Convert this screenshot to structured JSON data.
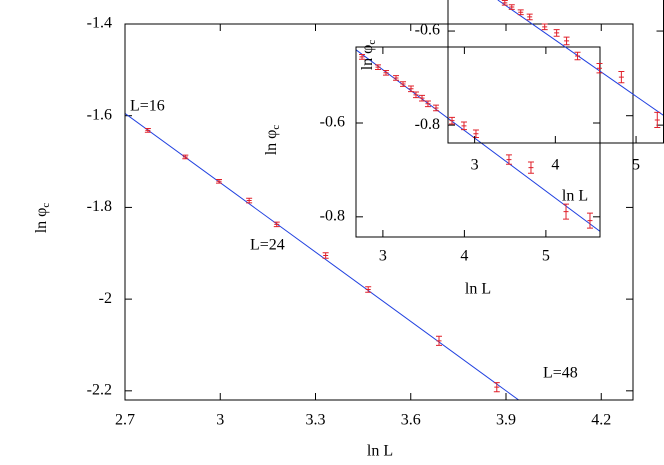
{
  "chart_data": [
    {
      "type": "scatter",
      "xlabel": "ln L",
      "ylabel": "ln φ",
      "ylabel_sub": "c",
      "xlim": [
        2.7,
        4.3
      ],
      "ylim": [
        -2.22,
        -1.4
      ],
      "xticks": [
        2.7,
        3,
        3.3,
        3.6,
        3.9,
        4.2
      ],
      "yticks": [
        -1.4,
        -1.6,
        -1.8,
        -2,
        -2.2
      ],
      "series": [
        {
          "color": "#e0202a",
          "x": [
            2.772,
            2.89,
            2.996,
            3.091,
            3.178,
            3.332,
            3.466,
            3.689,
            3.871
          ],
          "values": [
            -1.632,
            -1.69,
            -1.743,
            -1.785,
            -1.837,
            -1.905,
            -1.979,
            -2.091,
            -2.192
          ],
          "errors": [
            0.004,
            0.004,
            0.004,
            0.005,
            0.005,
            0.006,
            0.006,
            0.01,
            0.01
          ]
        }
      ],
      "fit": {
        "color": "#2040e0",
        "x": [
          2.7,
          3.94
        ],
        "values": [
          -1.595,
          -2.22
        ]
      },
      "annotations": [
        "L=16",
        "L=24",
        "L=48"
      ]
    },
    {
      "type": "scatter",
      "xlabel": "ln L",
      "ylabel": "ln φ",
      "ylabel_sub": "c",
      "xlim": [
        2.67,
        5.664
      ],
      "ylim": [
        -0.843,
        -0.438
      ],
      "xticks": [
        3,
        4,
        5
      ],
      "yticks": [
        -0.6,
        -0.8
      ],
      "series": [
        {
          "color": "#e0202a",
          "x": [
            2.744,
            2.94,
            3.038,
            3.161,
            3.247,
            3.345,
            3.406,
            3.48,
            3.553,
            3.652,
            3.848,
            3.995,
            4.142,
            4.547,
            4.817,
            5.247,
            5.541
          ],
          "values": [
            -0.459,
            -0.481,
            -0.493,
            -0.504,
            -0.517,
            -0.527,
            -0.54,
            -0.547,
            -0.559,
            -0.568,
            -0.595,
            -0.606,
            -0.623,
            -0.678,
            -0.695,
            -0.789,
            -0.808
          ],
          "errors": [
            0.005,
            0.005,
            0.005,
            0.005,
            0.005,
            0.006,
            0.006,
            0.006,
            0.006,
            0.006,
            0.007,
            0.008,
            0.008,
            0.01,
            0.012,
            0.016,
            0.016
          ]
        }
      ],
      "fit": {
        "color": "#2040e0",
        "x": [
          2.67,
          5.664
        ],
        "values": [
          -0.444,
          -0.831
        ]
      }
    },
    {
      "type": "scatter",
      "xlabel": "ln L",
      "ylabel": "ln φ",
      "ylabel_sub": "c",
      "xlim": [
        2.67,
        5.34
      ],
      "ylim": [
        -0.838,
        -0.534
      ],
      "xticks": [
        3,
        4,
        5
      ],
      "yticks": [
        -0.6,
        -0.8
      ],
      "series": [
        {
          "color": "#e0202a",
          "x": [
            3.374,
            3.46,
            3.571,
            3.682,
            3.868,
            4.016,
            4.139,
            4.275,
            4.547,
            4.818,
            5.263
          ],
          "values": [
            -0.54,
            -0.549,
            -0.56,
            -0.57,
            -0.591,
            -0.604,
            -0.621,
            -0.653,
            -0.679,
            -0.698,
            -0.789
          ],
          "errors": [
            0.005,
            0.005,
            0.005,
            0.006,
            0.006,
            0.007,
            0.008,
            0.008,
            0.01,
            0.012,
            0.016
          ]
        }
      ],
      "fit": {
        "color": "#2040e0",
        "x": [
          3.287,
          5.337
        ],
        "values": [
          -0.534,
          -0.779
        ]
      }
    }
  ]
}
